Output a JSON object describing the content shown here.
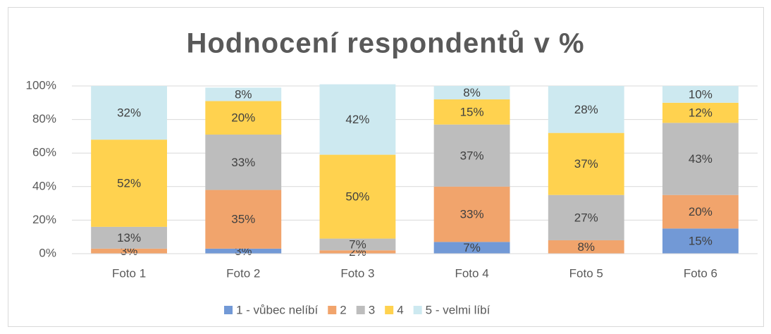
{
  "chart_data": {
    "type": "stacked_bar",
    "title": "Hodnocení respondentů v %",
    "categories": [
      "Foto 1",
      "Foto 2",
      "Foto 3",
      "Foto 4",
      "Foto 5",
      "Foto 6"
    ],
    "series": [
      {
        "name": "1 - vůbec nelíbí",
        "color": "#7299d6",
        "values": [
          null,
          3,
          null,
          7,
          null,
          15
        ]
      },
      {
        "name": "2",
        "color": "#f1a46c",
        "values": [
          3,
          35,
          2,
          33,
          8,
          20
        ]
      },
      {
        "name": "3",
        "color": "#bdbdbd",
        "values": [
          13,
          33,
          7,
          37,
          27,
          43
        ]
      },
      {
        "name": "4",
        "color": "#ffd24f",
        "values": [
          52,
          20,
          50,
          15,
          37,
          12
        ]
      },
      {
        "name": "5 - velmi líbí",
        "color": "#cde9f0",
        "values": [
          32,
          8,
          42,
          8,
          28,
          10
        ]
      }
    ],
    "value_labels": [
      [
        null,
        "3%",
        null,
        "7%",
        null,
        "15%"
      ],
      [
        "3%",
        "35%",
        "2%",
        "33%",
        "8%",
        "20%"
      ],
      [
        "13%",
        "33%",
        "7%",
        "37%",
        "27%",
        "43%"
      ],
      [
        "52%",
        "20%",
        "50%",
        "15%",
        "37%",
        "12%"
      ],
      [
        "32%",
        "8%",
        "42%",
        "8%",
        "28%",
        "10%"
      ]
    ],
    "ylim": [
      0,
      100
    ],
    "yticks": [
      {
        "value": 0,
        "label": "0%"
      },
      {
        "value": 20,
        "label": "20%"
      },
      {
        "value": 40,
        "label": "40%"
      },
      {
        "value": 60,
        "label": "60%"
      },
      {
        "value": 80,
        "label": "80%"
      },
      {
        "value": 100,
        "label": "100%"
      }
    ],
    "grid": true,
    "legend": "bottom"
  }
}
